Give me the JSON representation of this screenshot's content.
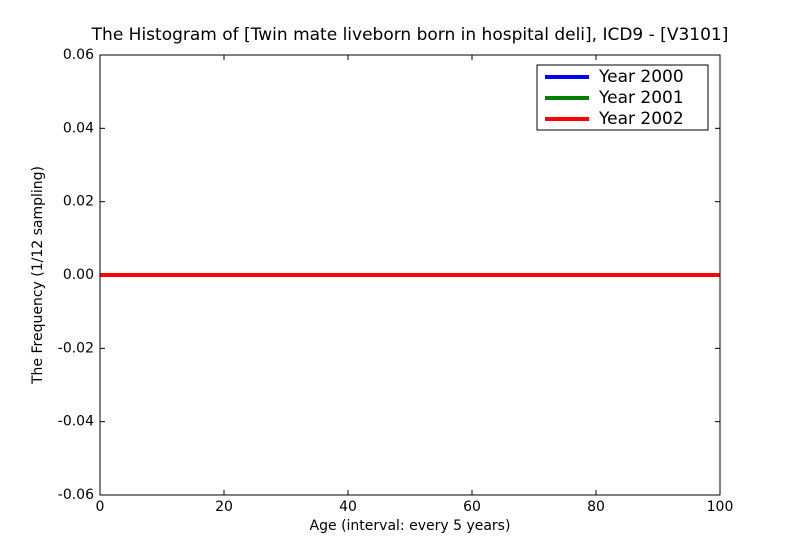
{
  "chart_data": {
    "type": "line",
    "title": "The Histogram of [Twin mate liveborn born in hospital deli], ICD9 - [V3101]",
    "x_label": "Age (interval: every 5 years)",
    "y_label": "The Frequency (1/12 sampling)",
    "x": [
      0,
      5,
      10,
      15,
      20,
      25,
      30,
      35,
      40,
      45,
      50,
      55,
      60,
      65,
      70,
      75,
      80,
      85,
      90,
      95,
      100
    ],
    "series": [
      {
        "name": "Year 2000",
        "color": "#0000ff",
        "values": [
          0,
          0,
          0,
          0,
          0,
          0,
          0,
          0,
          0,
          0,
          0,
          0,
          0,
          0,
          0,
          0,
          0,
          0,
          0,
          0,
          0
        ]
      },
      {
        "name": "Year 2001",
        "color": "#008000",
        "values": [
          0,
          0,
          0,
          0,
          0,
          0,
          0,
          0,
          0,
          0,
          0,
          0,
          0,
          0,
          0,
          0,
          0,
          0,
          0,
          0,
          0
        ]
      },
      {
        "name": "Year 2002",
        "color": "#ff0000",
        "values": [
          0,
          0,
          0,
          0,
          0,
          0,
          0,
          0,
          0,
          0,
          0,
          0,
          0,
          0,
          0,
          0,
          0,
          0,
          0,
          0,
          0
        ]
      }
    ],
    "xlim": [
      0,
      100
    ],
    "xticks": [
      0,
      20,
      40,
      60,
      80,
      100
    ],
    "ylim": [
      -0.06,
      0.06
    ],
    "yticks": [
      {
        "value": -0.06,
        "label": "-0.06"
      },
      {
        "value": -0.04,
        "label": "-0.04"
      },
      {
        "value": -0.02,
        "label": "-0.02"
      },
      {
        "value": 0,
        "label": "0.00"
      },
      {
        "value": 0.02,
        "label": "0.02"
      },
      {
        "value": 0.04,
        "label": "0.04"
      },
      {
        "value": 0.06,
        "label": "0.06"
      }
    ],
    "legend": "upper right"
  }
}
